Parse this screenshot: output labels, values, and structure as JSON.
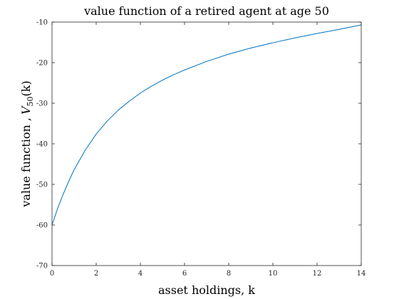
{
  "chart_data": {
    "type": "line",
    "title": "value function of a retired agent at age 50",
    "xlabel": "asset holdings, k",
    "ylabel_prefix": "value function ,",
    "ylabel_math": {
      "V": "V",
      "sub": "50",
      "arg": "(k)"
    },
    "xlim": [
      0,
      14
    ],
    "ylim": [
      -70,
      -10
    ],
    "xticks": [
      0,
      2,
      4,
      6,
      8,
      10,
      12,
      14
    ],
    "yticks": [
      -70,
      -60,
      -50,
      -40,
      -30,
      -20,
      -10
    ],
    "grid": false,
    "series": [
      {
        "color": "#0072BD",
        "x": [
          0,
          0.25,
          0.5,
          0.75,
          1,
          1.5,
          2,
          2.5,
          3,
          3.5,
          4,
          4.5,
          5,
          5.5,
          6,
          7,
          8,
          9,
          10,
          11,
          12,
          13,
          14
        ],
        "y": [
          -60.0,
          -56.0,
          -52.5,
          -49.3,
          -46.4,
          -41.6,
          -37.6,
          -34.4,
          -31.7,
          -29.5,
          -27.5,
          -25.8,
          -24.3,
          -23.0,
          -21.8,
          -19.7,
          -17.9,
          -16.4,
          -15.1,
          -13.9,
          -12.8,
          -11.8,
          -10.7
        ]
      }
    ]
  }
}
